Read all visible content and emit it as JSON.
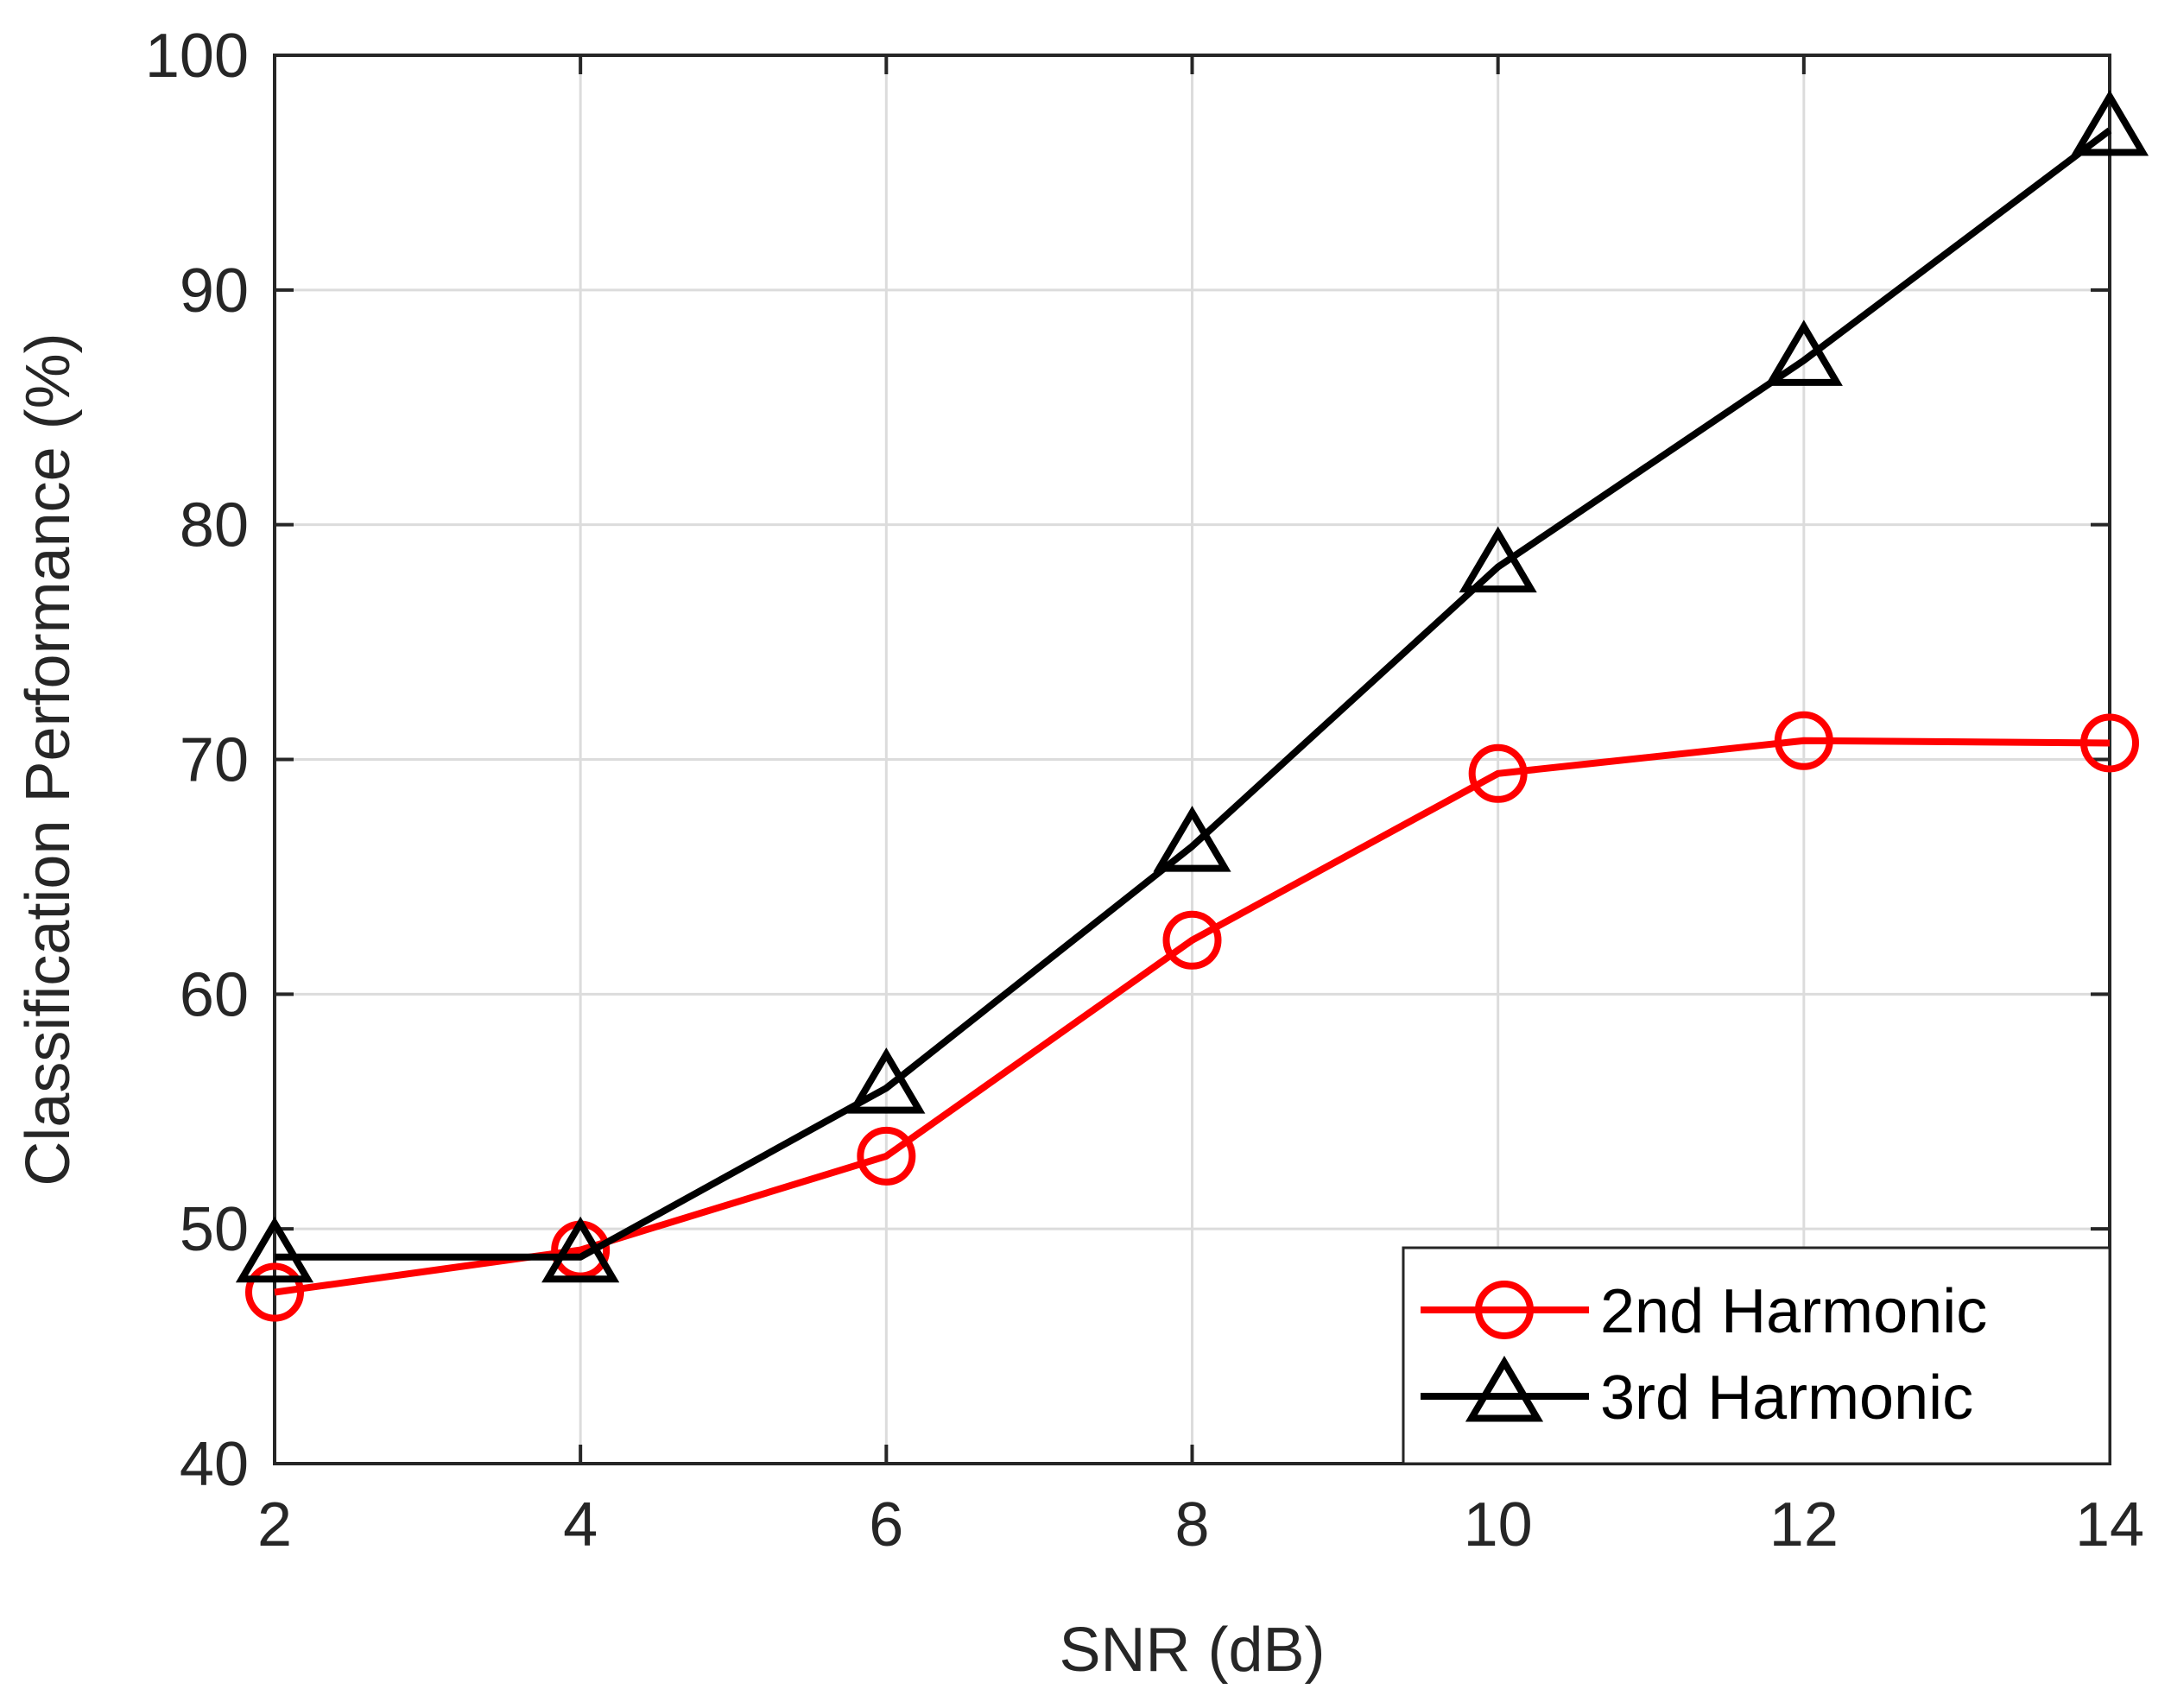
{
  "chart_data": {
    "type": "line",
    "title": "",
    "xlabel": "SNR (dB)",
    "ylabel": "Classification Performance (%)",
    "xlim": [
      2,
      14
    ],
    "ylim": [
      40,
      100
    ],
    "xticks": [
      2,
      4,
      6,
      8,
      10,
      12,
      14
    ],
    "yticks": [
      40,
      50,
      60,
      70,
      80,
      90,
      100
    ],
    "grid": true,
    "legend_position": "bottom-right",
    "x": [
      2,
      4,
      6,
      8,
      10,
      12,
      14
    ],
    "series": [
      {
        "name": "2nd Harmonic",
        "color": "#ff0000",
        "marker": "circle",
        "values": [
          47.3,
          49.1,
          53.1,
          62.3,
          69.4,
          70.8,
          70.7
        ]
      },
      {
        "name": "3rd Harmonic",
        "color": "#000000",
        "marker": "triangle",
        "values": [
          48.8,
          48.8,
          56.0,
          66.3,
          78.2,
          87.0,
          96.8
        ]
      }
    ]
  }
}
